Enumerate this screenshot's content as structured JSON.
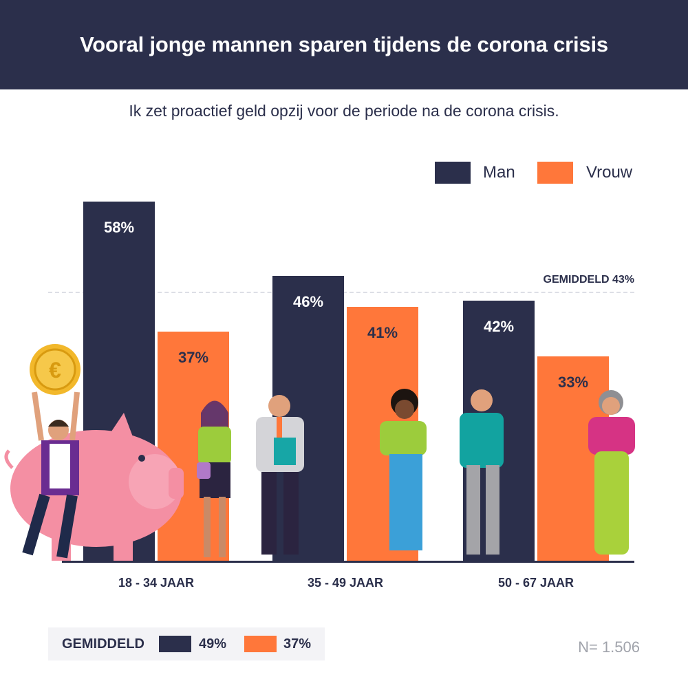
{
  "header": {
    "title": "Vooral jonge mannen sparen tijdens de corona crisis"
  },
  "subtitle": "Ik zet proactief geld opzij voor de periode na de corona crisis.",
  "colors": {
    "man": "#2b2f4b",
    "vrouw": "#ff773a",
    "header_bg": "#2b2f4b"
  },
  "legend": {
    "man": "Man",
    "vrouw": "Vrouw"
  },
  "average_line": {
    "label": "GEMIDDELD 43%",
    "value": 43
  },
  "chart_data": {
    "type": "bar",
    "categories": [
      "18 - 34 JAAR",
      "35 - 49 JAAR",
      "50 - 67 JAAR"
    ],
    "series": [
      {
        "name": "Man",
        "values": [
          58,
          46,
          42
        ],
        "labels": [
          "58%",
          "46%",
          "42%"
        ]
      },
      {
        "name": "Vrouw",
        "values": [
          37,
          41,
          33
        ],
        "labels": [
          "37%",
          "41%",
          "33%"
        ]
      }
    ],
    "ylim": [
      0,
      58
    ],
    "average": 43
  },
  "footer": {
    "title": "GEMIDDELD",
    "man_value": "49%",
    "vrouw_value": "37%",
    "sample": "N= 1.506"
  },
  "icons": {
    "coin_symbol": "€"
  }
}
